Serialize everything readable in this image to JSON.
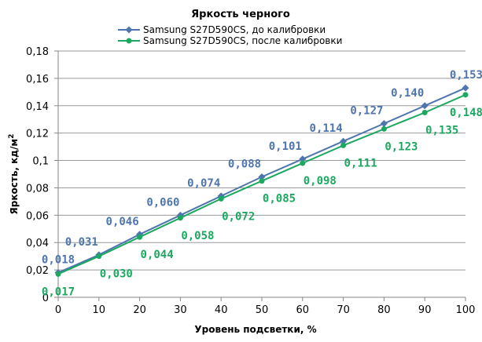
{
  "chart_data": {
    "type": "line",
    "title": "Яркость черного",
    "xlabel": "Уровень подсветки, %",
    "ylabel": "Яркость, кд/м",
    "ylabel_sup": "2",
    "x": [
      0,
      10,
      20,
      30,
      40,
      50,
      60,
      70,
      80,
      90,
      100
    ],
    "xlim": [
      0,
      100
    ],
    "ylim": [
      0,
      0.18
    ],
    "x_ticks": [
      "0",
      "10",
      "20",
      "30",
      "40",
      "50",
      "60",
      "70",
      "80",
      "90",
      "100"
    ],
    "y_ticks": [
      "0",
      "0,02",
      "0,04",
      "0,06",
      "0,08",
      "0,1",
      "0,12",
      "0,14",
      "0,16",
      "0,18"
    ],
    "grid": "horizontal",
    "legend_position": "top",
    "series": [
      {
        "name": "Samsung  S27D590CS,  до калибровки",
        "color": "#4F75AE",
        "marker": "diamond",
        "values": [
          0.018,
          0.031,
          0.046,
          0.06,
          0.074,
          0.088,
          0.101,
          0.114,
          0.127,
          0.14,
          0.153
        ],
        "labels": [
          "0,018",
          "0,031",
          "0,046",
          "0,060",
          "0,074",
          "0,088",
          "0,101",
          "0,114",
          "0,127",
          "0,140",
          "0,153"
        ]
      },
      {
        "name": "Samsung  S27D590CS,  после калибровки",
        "color": "#1CA860",
        "marker": "circle",
        "values": [
          0.017,
          0.03,
          0.044,
          0.058,
          0.072,
          0.085,
          0.098,
          0.111,
          0.123,
          0.135,
          0.148
        ],
        "labels": [
          "0,017",
          "0,030",
          "0,044",
          "0,058",
          "0,072",
          "0,085",
          "0,098",
          "0,111",
          "0,123",
          "0,135",
          "0,148"
        ]
      }
    ]
  }
}
